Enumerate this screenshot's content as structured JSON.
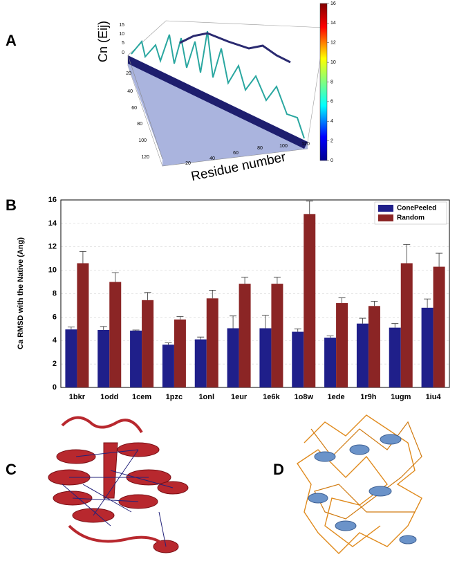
{
  "panel_a": {
    "label": "A",
    "z_label": "Cn (Eij)",
    "x_label": "Residue number",
    "zticks": [
      0,
      5,
      10,
      15
    ],
    "depth_ticks": [
      20,
      40,
      60,
      80,
      100,
      120
    ],
    "xticks": [
      20,
      40,
      60,
      80,
      100,
      120
    ],
    "colorbar_lim": [
      0,
      16
    ],
    "colorbar_ticks": [
      0,
      2,
      4,
      6,
      8,
      10,
      12,
      14,
      16
    ]
  },
  "chart_data": {
    "type": "bar",
    "panel_label": "B",
    "y_label": "Ca RMSD with the Native (Ang)",
    "categories": [
      "1bkr",
      "1odd",
      "1cem",
      "1pzc",
      "1onl",
      "1eur",
      "1e6k",
      "1o8w",
      "1ede",
      "1r9h",
      "1ugm",
      "1iu4"
    ],
    "series": [
      {
        "name": "ConePeeled",
        "color": "#1f1f8a",
        "values": [
          4.95,
          4.9,
          4.85,
          3.65,
          4.1,
          5.05,
          5.05,
          4.75,
          4.25,
          5.45,
          5.1,
          6.8
        ],
        "errors": [
          0.2,
          0.3,
          0.05,
          0.15,
          0.2,
          1.05,
          1.1,
          0.25,
          0.15,
          0.45,
          0.35,
          0.75
        ]
      },
      {
        "name": "Random",
        "color": "#8b2525",
        "values": [
          10.6,
          9.0,
          7.45,
          5.8,
          7.6,
          8.85,
          8.85,
          14.8,
          7.2,
          6.95,
          10.6,
          10.3
        ],
        "errors": [
          1.0,
          0.8,
          0.65,
          0.25,
          0.7,
          0.55,
          0.55,
          1.1,
          0.45,
          0.4,
          1.6,
          1.15
        ]
      }
    ],
    "ylim": [
      0,
      16
    ],
    "yticks": [
      0,
      2,
      4,
      6,
      8,
      10,
      12,
      14,
      16
    ],
    "grid": true,
    "legend": "top-right"
  },
  "panels": {
    "c": {
      "label": "C"
    },
    "d": {
      "label": "D"
    }
  }
}
